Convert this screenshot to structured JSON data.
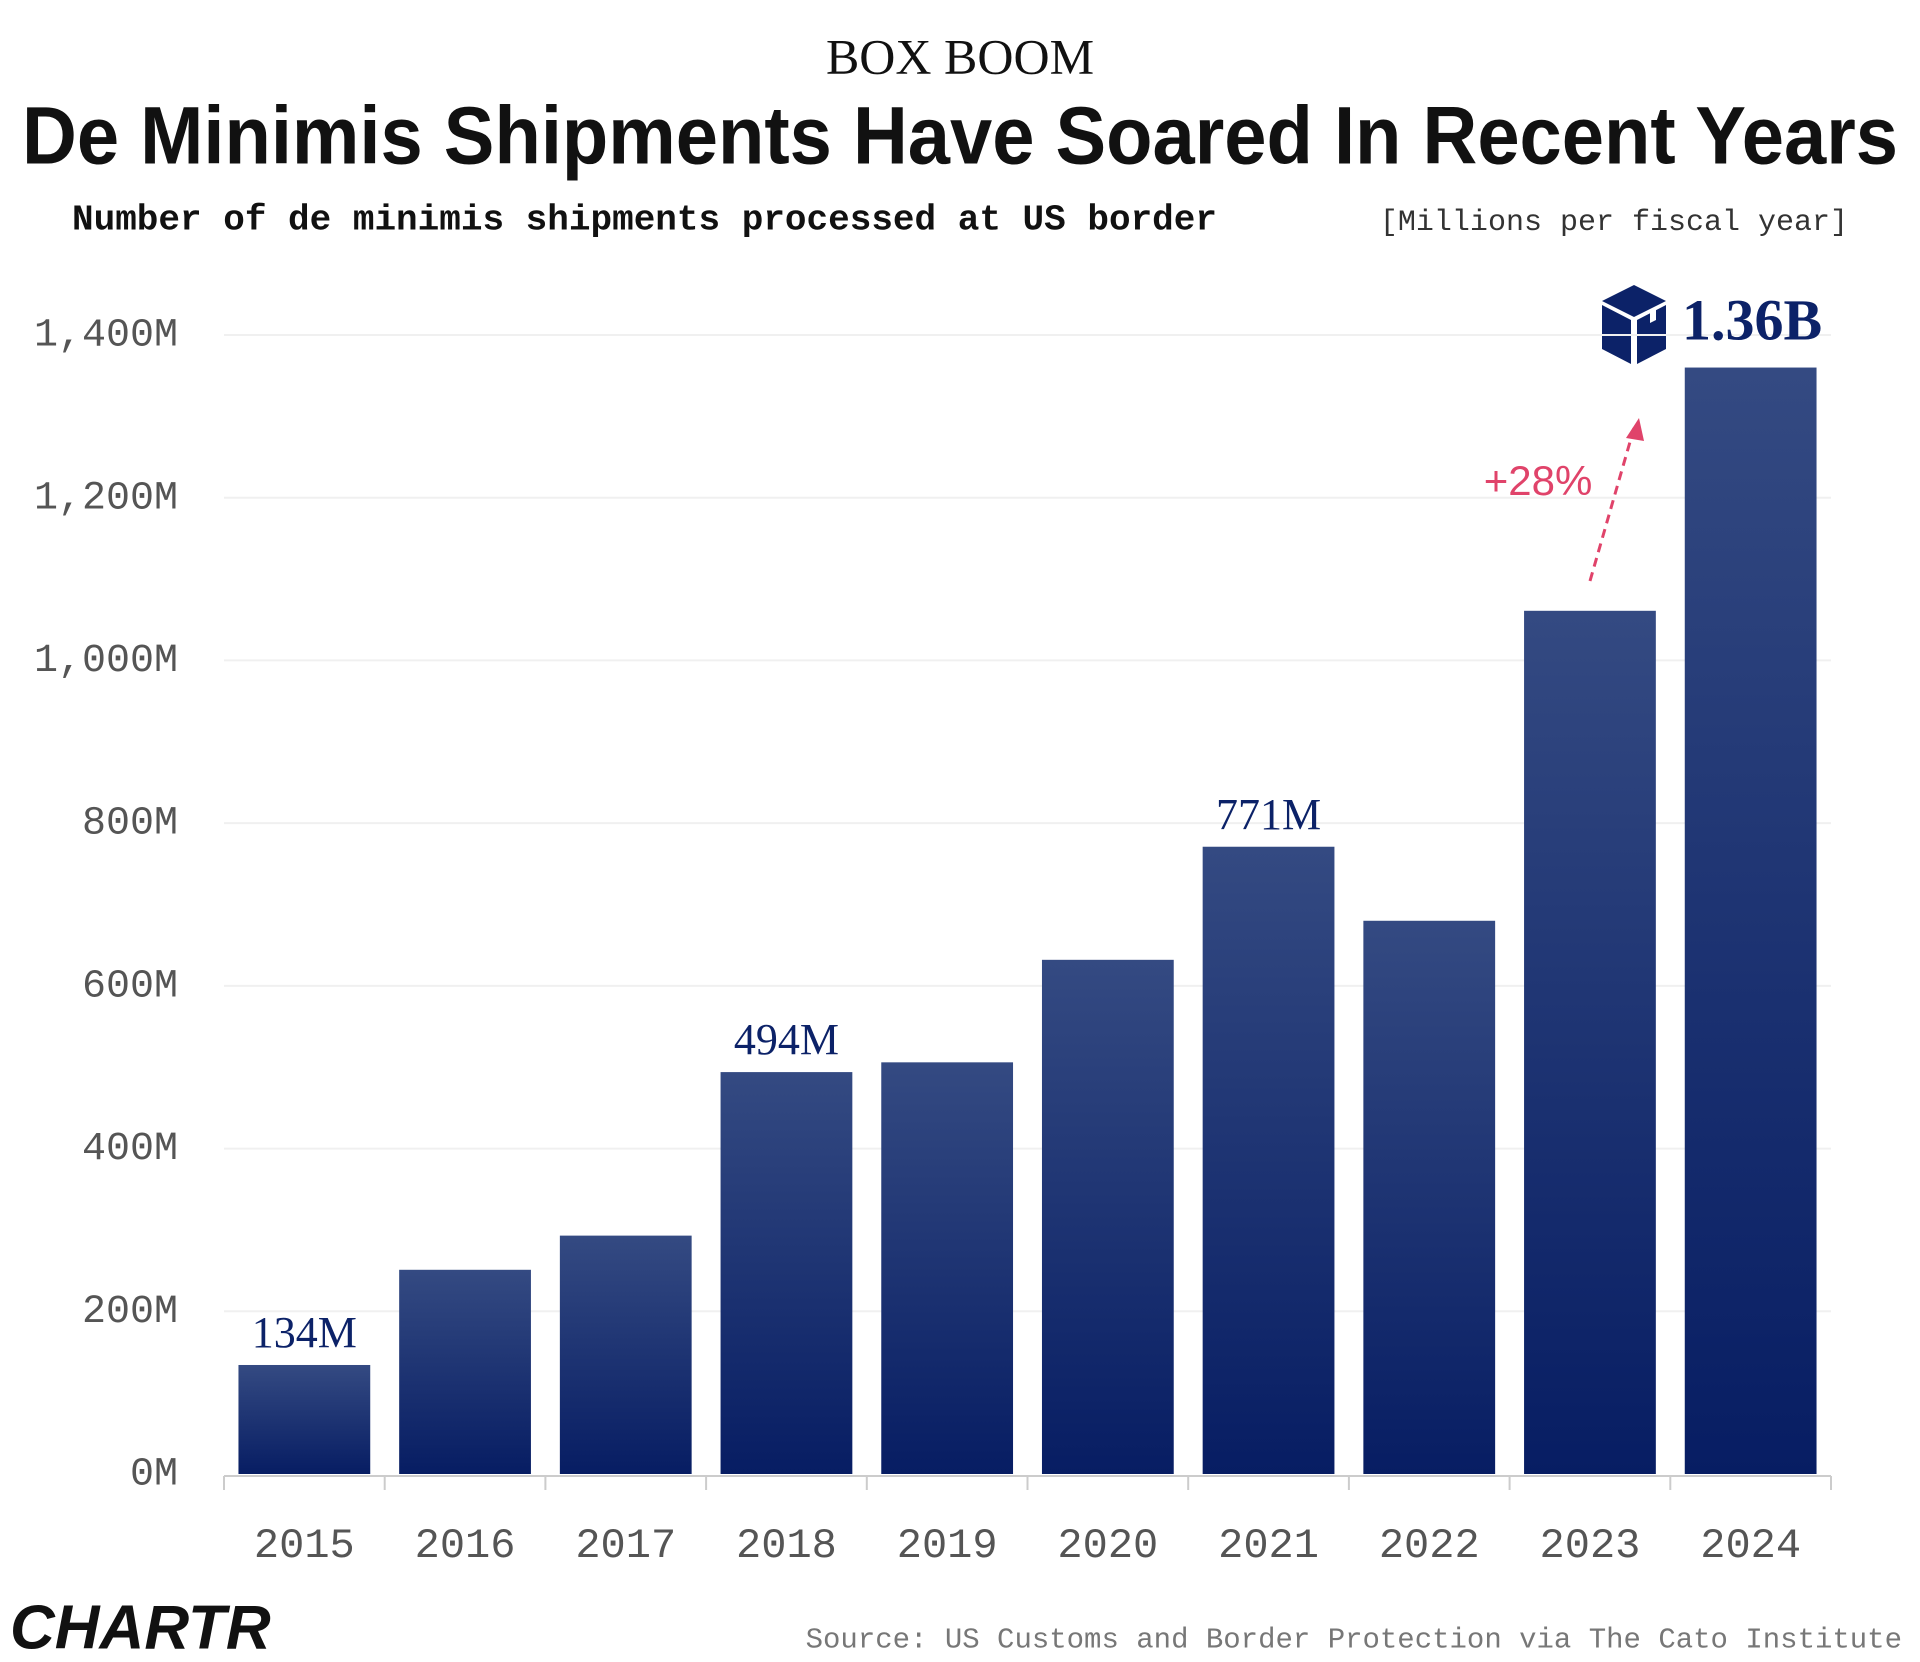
{
  "chart_data": {
    "type": "bar",
    "kicker": "BOX BOOM",
    "title": "De Minimis Shipments Have Soared In Recent Years",
    "subtitle": "Number of de minimis shipments processed at US border",
    "unit": "[Millions per fiscal year]",
    "categories": [
      "2015",
      "2016",
      "2017",
      "2018",
      "2019",
      "2020",
      "2021",
      "2022",
      "2023",
      "2024"
    ],
    "values": [
      134,
      251,
      293,
      494,
      506,
      632,
      771,
      680,
      1061,
      1360
    ],
    "value_labels": [
      "134M",
      null,
      null,
      "494M",
      null,
      null,
      "771M",
      null,
      null,
      "1.36B"
    ],
    "color": [
      "#344a82",
      "#071d63"
    ],
    "ylim": [
      0,
      1400
    ],
    "yticks": [
      {
        "value": 0,
        "label": "0M"
      },
      {
        "value": 200,
        "label": "200M"
      },
      {
        "value": 400,
        "label": "400M"
      },
      {
        "value": 600,
        "label": "600M"
      },
      {
        "value": 800,
        "label": "800M"
      },
      {
        "value": 1000,
        "label": "1,000M"
      },
      {
        "value": 1200,
        "label": "1,200M"
      },
      {
        "value": 1400,
        "label": "1,400M"
      }
    ],
    "grid": true,
    "annotation": "+28%",
    "source": "Source: US Customs and Border Protection via The Cato Institute",
    "brand": "CHARTR"
  }
}
